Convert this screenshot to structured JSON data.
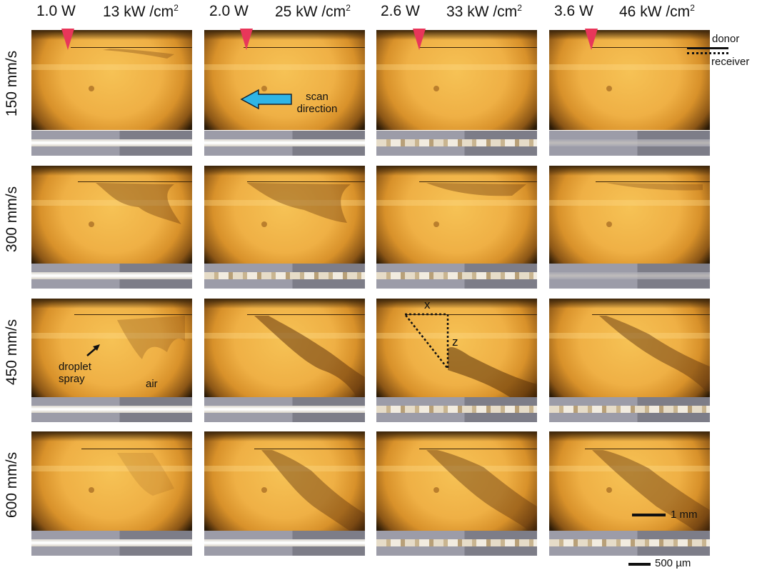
{
  "columns": [
    {
      "power": "1.0 W",
      "intensity": "13 kW /cm",
      "exp": "2"
    },
    {
      "power": "2.0 W",
      "intensity": "25 kW /cm",
      "exp": "2"
    },
    {
      "power": "2.6 W",
      "intensity": "33 kW /cm",
      "exp": "2"
    },
    {
      "power": "3.6 W",
      "intensity": "46 kW /cm",
      "exp": "2"
    }
  ],
  "rows": [
    {
      "speed": "150 mm/s"
    },
    {
      "speed": "300 mm/s"
    },
    {
      "speed": "450 mm/s"
    },
    {
      "speed": "600 mm/s"
    }
  ],
  "annotations": {
    "donor": "donor",
    "receiver": "receiver",
    "scan": "scan",
    "direction": "direction",
    "droplet": "droplet",
    "spray": "spray",
    "air": "air",
    "x": "x",
    "z": "z"
  },
  "scalebars": {
    "panel": "1 mm",
    "strip": "500 µm"
  },
  "colors": {
    "marker": "#e8365a",
    "arrow": "#2fb5e6"
  }
}
